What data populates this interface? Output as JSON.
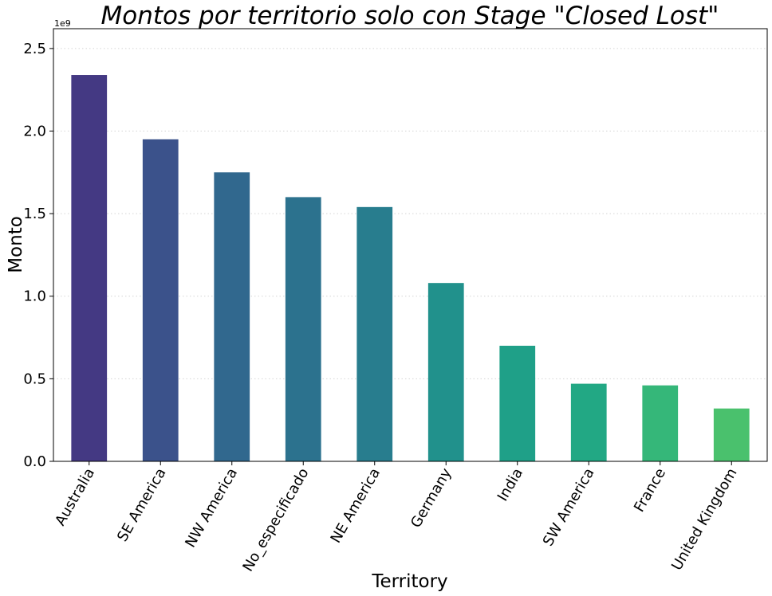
{
  "chart_data": {
    "type": "bar",
    "title": "Montos por territorio solo con Stage \"Closed Lost\"",
    "xlabel": "Territory",
    "ylabel": "Monto",
    "y_offset_label": "1e9",
    "categories": [
      "Australia",
      "SE America",
      "NW America",
      "No_especificado",
      "NE America",
      "Germany",
      "India",
      "SW America",
      "France",
      "United Kingdom"
    ],
    "values": [
      2.34,
      1.95,
      1.75,
      1.6,
      1.54,
      1.08,
      0.7,
      0.47,
      0.46,
      0.32
    ],
    "ylim": [
      0,
      2.62
    ],
    "yticks": [
      0.0,
      0.5,
      1.0,
      1.5,
      2.0,
      2.5
    ],
    "ytick_labels": [
      "0.0",
      "0.5",
      "1.0",
      "1.5",
      "2.0",
      "2.5"
    ],
    "grid": "y-dotted",
    "colors": [
      "#443983",
      "#3b528b",
      "#31688e",
      "#2c728e",
      "#287d8e",
      "#21918c",
      "#1fa088",
      "#22a884",
      "#35b779",
      "#4ac16d"
    ]
  }
}
